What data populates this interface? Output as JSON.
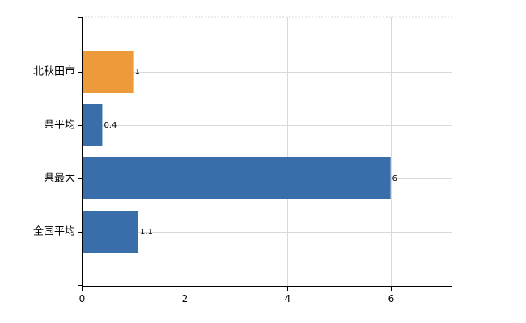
{
  "chart_data": {
    "type": "bar",
    "orientation": "horizontal",
    "categories": [
      "北秋田市",
      "県平均",
      "県最大",
      "全国平均"
    ],
    "values": [
      1,
      0.4,
      6,
      1.1
    ],
    "data_labels": [
      "1",
      "0.4",
      "6",
      "1.1"
    ],
    "bar_colors": [
      "#ED9A3B",
      "#3A6EAB",
      "#3A6EAB",
      "#3A6EAB"
    ],
    "highlight_color": "#ED9A3B",
    "base_color": "#3A6EAB",
    "title": "",
    "xlabel": "",
    "ylabel": "",
    "xlim": [
      0,
      7.2
    ],
    "x_ticks": [
      0,
      2,
      4,
      6
    ],
    "grid": true,
    "legend": "none"
  }
}
